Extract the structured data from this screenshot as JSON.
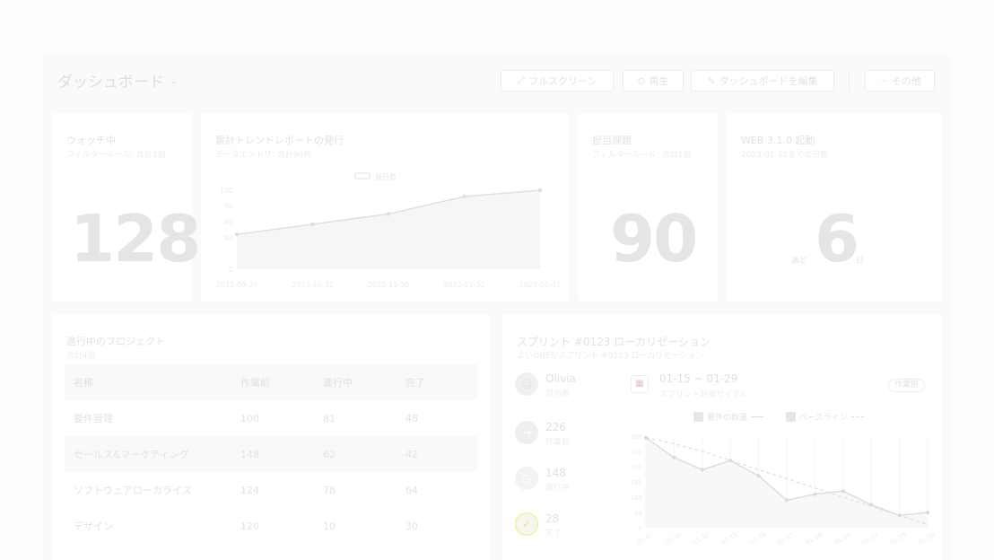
{
  "header": {
    "title": "ダッシュボード",
    "buttons": {
      "fullscreen": "フルスクリーン",
      "play": "再生",
      "edit": "ダッシュボードを編集",
      "more": "その他"
    }
  },
  "watching": {
    "title": "ウォッチ中",
    "subtitle": "フィルタールール: 合計1個",
    "value": "128"
  },
  "trend": {
    "title": "累計トレンドレポートの発行",
    "subtitle": "データエントリ: 合計90件",
    "legend": "発行数",
    "yticks": [
      "100",
      "80",
      "60",
      "40",
      "0"
    ],
    "xticks": [
      "2022-09-30",
      "2022-10-31",
      "2022-11-30",
      "2022-12-31",
      "2023-01-31"
    ]
  },
  "assigned": {
    "title": "担当課題",
    "subtitle": "フィルタールール: 合計1個",
    "value": "90"
  },
  "release": {
    "title": "WEB 3.1.0 起動",
    "subtitle": "2023-01-22までの日数",
    "prefix": "あと",
    "value": "6",
    "suffix": "日"
  },
  "projects": {
    "title": "進行中のプロジェクト",
    "subtitle": "合計4個",
    "columns": [
      "名称",
      "作業前",
      "進行中",
      "完了"
    ],
    "rows": [
      [
        "要件管理",
        "100",
        "81",
        "48"
      ],
      [
        "セールス&マーケティング",
        "148",
        "62",
        "42"
      ],
      [
        "ソフトウェアローカライズ",
        "124",
        "78",
        "64"
      ],
      [
        "デザイン",
        "120",
        "10",
        "30"
      ]
    ]
  },
  "sprint": {
    "title": "スプリント #0123 ローカリゼーション",
    "breadcrumb": "よいONES/スプリント #0123 ローカリゼーション",
    "owner_name": "Olivia",
    "owner_label": "担当者",
    "todo_value": "226",
    "todo_label": "作業前",
    "doing_value": "148",
    "doing_label": "進行中",
    "done_value": "28",
    "done_label": "完了",
    "range": "01-15 ~ 01-29",
    "cycle_label": "スプリント計画サイクル",
    "status": "作業前",
    "legend_count": "要件の数量",
    "legend_baseline": "ベースライン",
    "yticks": [
      "300",
      "250",
      "200",
      "150",
      "100",
      "50",
      "0"
    ],
    "xticks": [
      "01-07",
      "01-10",
      "01-12",
      "01-15",
      "01-16",
      "01-17",
      "01-19",
      "01-21",
      "01-23",
      "01-25",
      "01-30"
    ]
  },
  "chart_data": [
    {
      "type": "line",
      "title": "累計トレンドレポートの発行",
      "x": [
        "2022-09-30",
        "2022-10-31",
        "2022-11-30",
        "2022-12-31",
        "2023-01-31"
      ],
      "series": [
        {
          "name": "発行数",
          "values": [
            44,
            57,
            70,
            92,
            100
          ]
        }
      ],
      "ylim": [
        0,
        100
      ]
    },
    {
      "type": "line",
      "title": "スプリント #0123 ローカリゼーション",
      "x": [
        "01-07",
        "01-10",
        "01-12",
        "01-15",
        "01-16",
        "01-17",
        "01-19",
        "01-21",
        "01-23",
        "01-25",
        "01-30"
      ],
      "series": [
        {
          "name": "要件の数量",
          "values": [
            295,
            230,
            190,
            220,
            170,
            90,
            110,
            120,
            75,
            40,
            50
          ]
        },
        {
          "name": "ベースライン",
          "values": [
            295,
            275,
            250,
            220,
            190,
            160,
            130,
            100,
            70,
            40,
            10
          ]
        }
      ],
      "ylim": [
        0,
        300
      ]
    }
  ]
}
